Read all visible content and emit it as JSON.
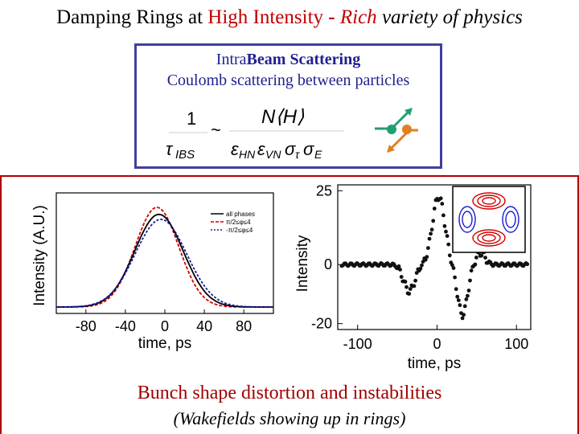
{
  "title": {
    "part1": "Damping Rings at ",
    "highlight": "High Intensity",
    "dash": " - ",
    "rich": "Rich",
    "rest": " variety of physics"
  },
  "ibs": {
    "line1_intra": "Intra",
    "line1_beam": "Beam",
    "line1_scattering": "Scattering",
    "line2": "Coulomb scattering between particles",
    "formula_lhs_num": "1",
    "formula_lhs_den": "τ",
    "formula_lhs_sub": "IBS",
    "formula_sim": "~",
    "formula_rhs_num": "N⟨H⟩",
    "formula_rhs_den": "ε",
    "formula_rhs_den_sub1": "HN",
    "formula_rhs_den_mid": "ε",
    "formula_rhs_den_sub2": "VN",
    "formula_rhs_den_tail": "σ",
    "formula_rhs_den_sub3": "τ",
    "formula_rhs_den_tail2": "σ",
    "formula_rhs_den_sub4": "E"
  },
  "chart_data": [
    {
      "type": "line",
      "xlabel": "time, ps",
      "ylabel": "Intensity (A.U.)",
      "xlim": [
        -110,
        110
      ],
      "xticks": [
        "-80",
        "-40",
        "0",
        "40",
        "80"
      ],
      "legend": [
        "all phases",
        "π/2≤φ≤4",
        "-π/2≤φ≤4"
      ],
      "legend_position": "top-right",
      "series": [
        {
          "color": "#d00000",
          "peak": 1.0,
          "center": -8,
          "width": 28
        },
        {
          "color": "#000000",
          "peak": 0.93,
          "center": -6,
          "width": 31
        },
        {
          "color": "#1a1aa0",
          "peak": 0.88,
          "center": -4,
          "width": 33
        }
      ]
    },
    {
      "type": "scatter",
      "xlabel": "time, ps",
      "ylabel": "Intensity",
      "xlim": [
        -125,
        118
      ],
      "ylim": [
        -22,
        27
      ],
      "xticks": [
        "-100",
        "0",
        "100"
      ],
      "yticks": [
        "25",
        "0",
        "-20"
      ]
    }
  ],
  "captions": {
    "line1": "Bunch shape distortion and instabilities",
    "line2": "(Wakefields showing up in rings)"
  }
}
